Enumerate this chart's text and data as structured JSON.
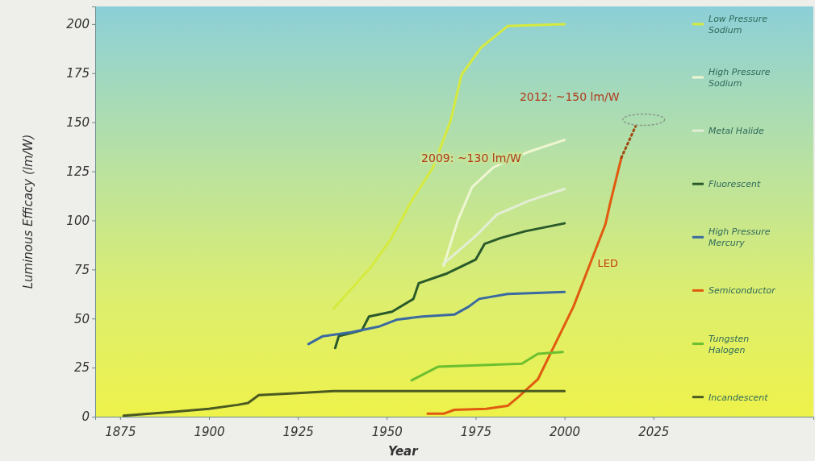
{
  "chart_data": {
    "type": "line",
    "xlabel": "Year",
    "ylabel": "Luminous Efficacy (lm/W)",
    "xlim": [
      1868,
      2070
    ],
    "ylim": [
      0,
      209
    ],
    "xticks": [
      1875,
      1900,
      1925,
      1950,
      1975,
      2000,
      2025
    ],
    "yticks": [
      0,
      25,
      50,
      75,
      100,
      125,
      150,
      175,
      200
    ],
    "grid": false,
    "legend": "right",
    "marker": "none",
    "line_style": "solid",
    "annotations": [
      "2012: ~150 lm/W",
      "2009: ~130 lm/W",
      {
        "text": "LED",
        "x": 2007,
        "y": 77
      }
    ],
    "series": [
      {
        "name": "Low Pressure Sodium",
        "color": "#d6ea3e",
        "x": [
          1935,
          1945,
          1951,
          1957,
          1963,
          1968,
          1971,
          1976.5,
          1984,
          2000
        ],
        "values": [
          55,
          75,
          90,
          110,
          127,
          151,
          174,
          188,
          199,
          200
        ]
      },
      {
        "name": "High Pressure Sodium",
        "color": "#eef6d2",
        "x": [
          1966,
          1970,
          1974,
          1980,
          1990,
          2000
        ],
        "values": [
          77,
          100,
          117,
          127,
          135,
          141
        ]
      },
      {
        "name": "Metal Halide",
        "color": "#e4eed6",
        "x": [
          1966,
          1975,
          1981,
          1990,
          2000
        ],
        "values": [
          78,
          92,
          103,
          110,
          116
        ]
      },
      {
        "name": "Fluorescent",
        "color": "#2a5a2a",
        "x": [
          1935.5,
          1936.5,
          1943,
          1945,
          1951.5,
          1957.5,
          1959,
          1967,
          1975,
          1977.5,
          1982,
          1989,
          2000
        ],
        "values": [
          35,
          41,
          44,
          51,
          53.5,
          60,
          68,
          73,
          80,
          88,
          91,
          94.5,
          98.5
        ]
      },
      {
        "name": "High Pressure Mercury",
        "color": "#3a6aa0",
        "x": [
          1928,
          1932,
          1940,
          1948,
          1953,
          1960,
          1969,
          1973,
          1976,
          1984,
          2000
        ],
        "values": [
          37,
          41,
          43,
          46,
          49.5,
          51,
          52,
          56,
          60,
          62.5,
          63.5
        ]
      },
      {
        "name": "Semiconductor",
        "color": "#e05a10",
        "x": [
          1961.5,
          1966,
          1969,
          1978,
          1984,
          1987,
          1992.5,
          1996,
          2002.5,
          2007,
          2011.5,
          2013,
          2016
        ],
        "values": [
          1.5,
          1.5,
          3.5,
          4,
          5.5,
          10,
          19,
          32,
          56,
          77,
          98,
          110,
          132
        ]
      },
      {
        "color": "#a04a10",
        "line_style": "dotted",
        "x": [
          2016,
          2020
        ],
        "values": [
          132,
          148
        ]
      },
      {
        "name": "Tungsten Halogen",
        "color": "#6cc030",
        "x": [
          1957,
          1964.5,
          1988,
          1992.5,
          1999.5
        ],
        "values": [
          18.5,
          25.5,
          27,
          32,
          33
        ]
      },
      {
        "name": "Incandescent",
        "color": "#4a5a20",
        "x": [
          1876,
          1890,
          1900,
          1908,
          1911,
          1914,
          1925,
          1935,
          1960,
          2000
        ],
        "values": [
          0.5,
          2.5,
          4,
          6,
          7,
          11,
          12,
          13,
          13,
          13
        ]
      }
    ]
  }
}
